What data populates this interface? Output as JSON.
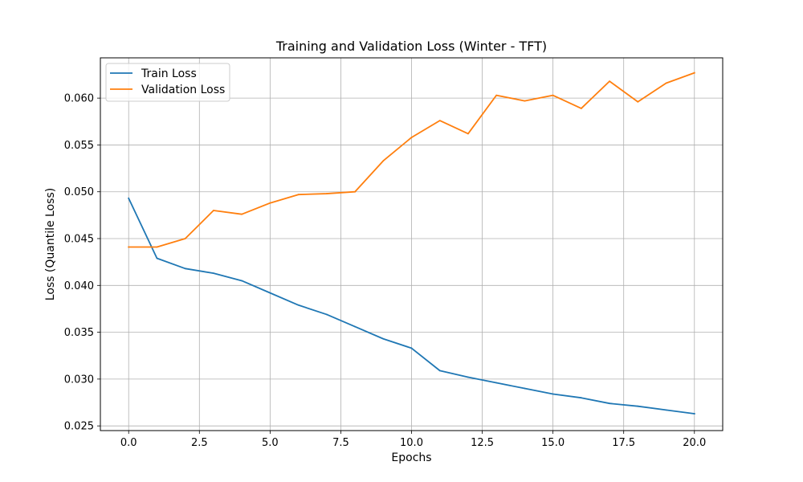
{
  "chart_data": {
    "type": "line",
    "title": "Training and Validation Loss (Winter - TFT)",
    "xlabel": "Epochs",
    "ylabel": "Loss (Quantile Loss)",
    "xlim": [
      -1.0,
      21.0
    ],
    "ylim": [
      0.0245,
      0.0643
    ],
    "xticks": [
      "0.0",
      "2.5",
      "5.0",
      "7.5",
      "10.0",
      "12.5",
      "15.0",
      "17.5",
      "20.0"
    ],
    "yticks": [
      "0.025",
      "0.030",
      "0.035",
      "0.040",
      "0.045",
      "0.050",
      "0.055",
      "0.060"
    ],
    "grid": true,
    "legend_position": "top-left",
    "x": [
      0,
      1,
      2,
      3,
      4,
      5,
      6,
      7,
      8,
      9,
      10,
      11,
      12,
      13,
      14,
      15,
      16,
      17,
      18,
      19,
      20
    ],
    "series": [
      {
        "name": "Train Loss",
        "color": "#1f77b4",
        "values": [
          0.0493,
          0.0429,
          0.0418,
          0.0413,
          0.0405,
          0.0392,
          0.0379,
          0.0369,
          0.0356,
          0.0343,
          0.0333,
          0.0309,
          0.0302,
          0.0296,
          0.029,
          0.0284,
          0.028,
          0.0274,
          0.0271,
          0.0267,
          0.0263
        ]
      },
      {
        "name": "Validation Loss",
        "color": "#ff7f0e",
        "values": [
          0.0441,
          0.0441,
          0.045,
          0.048,
          0.0476,
          0.0488,
          0.0497,
          0.0498,
          0.05,
          0.0533,
          0.0558,
          0.0576,
          0.0562,
          0.0603,
          0.0597,
          0.0603,
          0.0589,
          0.0618,
          0.0596,
          0.0616,
          0.0627
        ]
      }
    ]
  }
}
